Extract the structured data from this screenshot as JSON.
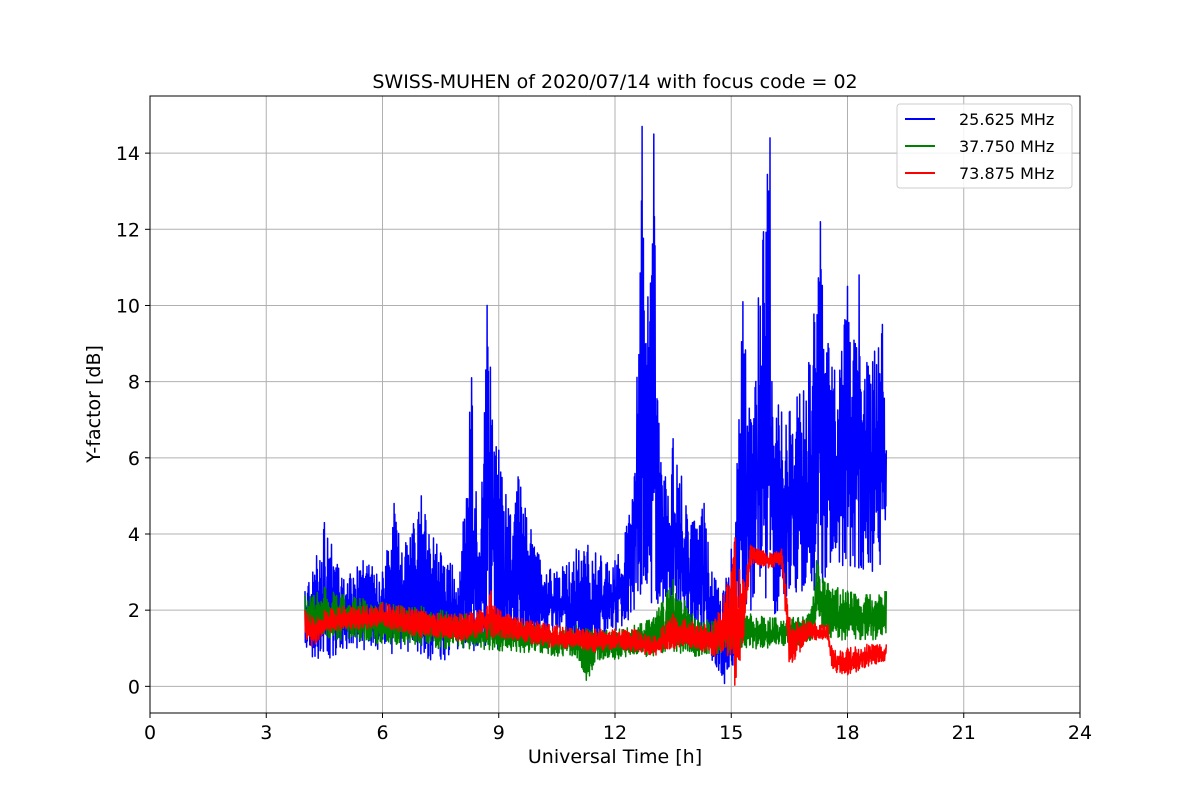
{
  "chart_data": {
    "type": "line",
    "title": "SWISS-MUHEN of 2020/07/14 with focus code = 02",
    "xlabel": "Universal Time [h]",
    "ylabel": "Y-factor [dB]",
    "xlim": [
      0,
      24
    ],
    "ylim": [
      -0.7,
      15.5
    ],
    "xticks": [
      0,
      3,
      6,
      9,
      12,
      15,
      18,
      21,
      24
    ],
    "yticks": [
      0,
      2,
      4,
      6,
      8,
      10,
      12,
      14
    ],
    "grid": true,
    "legend_position": "top-right",
    "series": [
      {
        "name": "25.625 MHz",
        "color": "#0000ff",
        "x": [
          4.0,
          4.2,
          4.5,
          5.0,
          5.5,
          6.0,
          6.3,
          6.5,
          7.0,
          7.5,
          8.0,
          8.3,
          8.5,
          8.7,
          9.0,
          9.3,
          9.5,
          10.0,
          10.5,
          11.0,
          11.3,
          11.5,
          12.0,
          12.3,
          12.5,
          12.7,
          12.8,
          13.0,
          13.1,
          13.3,
          13.5,
          14.0,
          14.3,
          14.5,
          14.8,
          15.0,
          15.2,
          15.3,
          15.5,
          15.7,
          16.0,
          16.05,
          16.3,
          16.5,
          17.0,
          17.3,
          17.5,
          17.8,
          18.0,
          18.2,
          18.3,
          18.5,
          18.7,
          18.9,
          19.0
        ],
        "y_high": [
          2.5,
          3.0,
          4.3,
          2.8,
          3.3,
          3.0,
          4.8,
          3.5,
          5.0,
          3.5,
          3.0,
          8.1,
          3.5,
          10.0,
          6.2,
          4.5,
          5.5,
          3.5,
          3.0,
          3.6,
          3.7,
          3.5,
          3.3,
          4.2,
          5.5,
          14.7,
          9.0,
          14.5,
          7.5,
          5.5,
          6.5,
          4.3,
          4.8,
          3.0,
          2.5,
          3.6,
          7.0,
          10.1,
          7.0,
          10.2,
          14.4,
          8.0,
          7.2,
          7.2,
          8.5,
          12.2,
          9.0,
          8.3,
          10.5,
          9.0,
          10.8,
          8.5,
          8.8,
          9.5,
          6.2
        ],
        "y_low": [
          1.0,
          0.8,
          0.7,
          1.0,
          1.0,
          1.0,
          0.9,
          1.0,
          0.8,
          0.7,
          0.9,
          1.0,
          1.0,
          1.0,
          1.0,
          0.9,
          1.0,
          1.2,
          1.5,
          0.8,
          0.5,
          1.0,
          1.5,
          1.5,
          2.0,
          2.5,
          2.5,
          2.3,
          2.0,
          2.0,
          1.8,
          1.5,
          1.0,
          0.7,
          0.0,
          0.5,
          1.0,
          2.0,
          2.0,
          2.5,
          2.5,
          2.0,
          2.0,
          2.5,
          2.5,
          2.8,
          3.0,
          3.0,
          3.2,
          3.0,
          3.0,
          3.2,
          3.0,
          2.8,
          3.5
        ]
      },
      {
        "name": "37.750 MHz",
        "color": "#008000",
        "x": [
          4.0,
          4.5,
          5.0,
          5.5,
          6.0,
          6.5,
          7.0,
          7.5,
          8.0,
          8.5,
          9.0,
          9.5,
          10.0,
          10.5,
          11.0,
          11.3,
          11.5,
          12.0,
          12.5,
          13.0,
          13.5,
          14.0,
          14.5,
          15.0,
          15.5,
          16.0,
          16.5,
          17.0,
          17.2,
          17.5,
          18.0,
          18.5,
          19.0
        ],
        "y_high": [
          2.4,
          2.6,
          2.4,
          2.3,
          2.2,
          2.1,
          2.1,
          2.0,
          1.9,
          1.9,
          1.8,
          1.7,
          1.6,
          1.6,
          1.6,
          1.5,
          1.5,
          1.5,
          1.6,
          1.8,
          2.8,
          1.9,
          1.7,
          1.8,
          1.9,
          1.8,
          1.8,
          1.9,
          3.3,
          2.7,
          2.5,
          2.4,
          2.5
        ],
        "y_low": [
          1.4,
          1.3,
          1.2,
          1.2,
          1.1,
          1.1,
          1.1,
          1.0,
          1.0,
          1.0,
          0.9,
          0.9,
          0.9,
          0.8,
          0.8,
          0.0,
          0.7,
          0.7,
          0.8,
          0.8,
          0.9,
          0.8,
          0.8,
          0.9,
          1.0,
          1.0,
          1.1,
          1.1,
          1.5,
          1.3,
          1.2,
          1.2,
          1.3
        ]
      },
      {
        "name": "73.875 MHz",
        "color": "#ff0000",
        "x": [
          4.0,
          4.2,
          4.5,
          5.0,
          5.5,
          6.0,
          6.5,
          7.0,
          7.5,
          8.0,
          8.5,
          8.8,
          9.0,
          9.5,
          10.0,
          10.5,
          11.0,
          11.5,
          12.0,
          12.5,
          13.0,
          13.5,
          14.0,
          14.5,
          15.0,
          15.1,
          15.3,
          15.5,
          15.7,
          16.0,
          16.3,
          16.5,
          17.0,
          17.5,
          17.6,
          18.0,
          18.5,
          19.0
        ],
        "y_high": [
          2.0,
          1.8,
          2.0,
          2.1,
          2.1,
          2.2,
          2.1,
          2.0,
          1.9,
          1.9,
          2.0,
          2.5,
          2.0,
          1.8,
          1.7,
          1.6,
          1.5,
          1.5,
          1.5,
          1.5,
          1.3,
          1.9,
          1.7,
          1.6,
          3.0,
          3.9,
          2.8,
          3.7,
          3.6,
          3.5,
          3.6,
          1.8,
          1.7,
          1.6,
          1.0,
          1.0,
          1.1,
          1.1
        ],
        "y_low": [
          1.3,
          1.0,
          1.4,
          1.5,
          1.5,
          1.6,
          1.4,
          1.3,
          1.3,
          1.2,
          1.3,
          1.2,
          1.3,
          1.2,
          1.1,
          1.0,
          1.0,
          0.9,
          1.0,
          0.9,
          0.8,
          1.0,
          1.0,
          0.8,
          0.8,
          0.0,
          1.0,
          3.2,
          3.2,
          3.1,
          3.2,
          0.5,
          1.2,
          1.2,
          0.4,
          0.3,
          0.5,
          0.7
        ]
      }
    ]
  }
}
